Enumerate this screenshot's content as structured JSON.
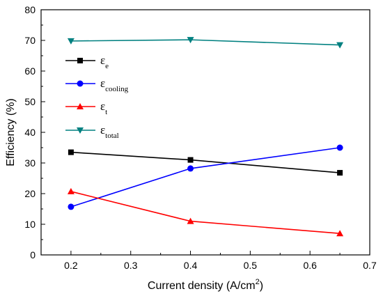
{
  "chart_data": {
    "type": "line",
    "xlabel": "Current density (A/cm",
    "xlabel_superscript": "2",
    "xlabel_suffix": ")",
    "ylabel": "Efficiency (%)",
    "xlim": [
      0.15,
      0.7
    ],
    "ylim": [
      0,
      80
    ],
    "xticks": [
      0.2,
      0.3,
      0.4,
      0.5,
      0.6,
      0.7
    ],
    "xtick_labels": [
      "0.2",
      "0.3",
      "0.4",
      "0.5",
      "0.6",
      "0.7"
    ],
    "yticks": [
      0,
      10,
      20,
      30,
      40,
      50,
      60,
      70,
      80
    ],
    "ytick_labels": [
      "0",
      "10",
      "20",
      "30",
      "40",
      "50",
      "60",
      "70",
      "80"
    ],
    "grid": false,
    "legend_position": "upper-left",
    "x": [
      0.2,
      0.4,
      0.65
    ],
    "series": [
      {
        "symbol": "ε",
        "subscript": "e",
        "color": "#000000",
        "marker": "square",
        "values": [
          33.5,
          31,
          26.8
        ]
      },
      {
        "symbol": "ε",
        "subscript": "cooling",
        "color": "#0000ff",
        "marker": "circle",
        "values": [
          15.7,
          28.2,
          35
        ]
      },
      {
        "symbol": "ε",
        "subscript": "t",
        "color": "#ff0000",
        "marker": "triangle-up",
        "values": [
          20.7,
          11,
          7
        ]
      },
      {
        "symbol": "ε",
        "subscript": "total",
        "color": "#008080",
        "marker": "triangle-down",
        "values": [
          69.8,
          70.2,
          68.5
        ]
      }
    ]
  }
}
